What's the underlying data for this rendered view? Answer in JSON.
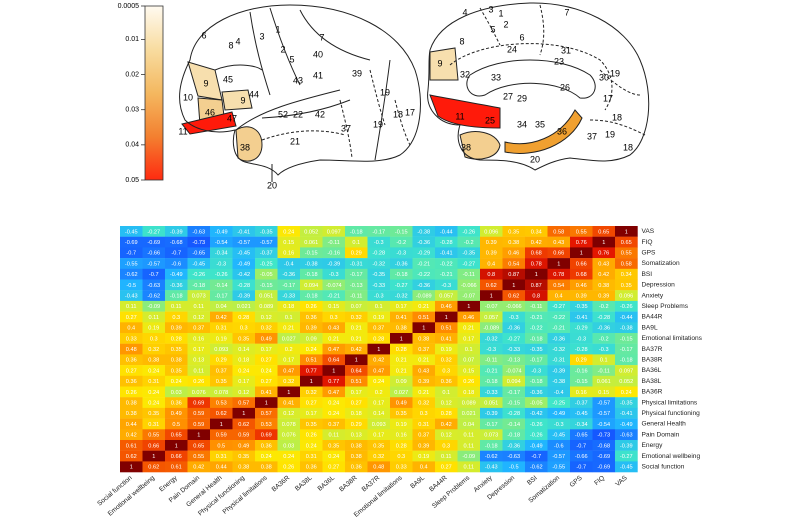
{
  "brain_maps": {
    "lateral_labels": [
      "4",
      "6",
      "3",
      "1",
      "2",
      "5",
      "7",
      "8",
      "9",
      "9",
      "10",
      "46",
      "45",
      "44",
      "43",
      "41",
      "40",
      "39",
      "19",
      "18",
      "17",
      "11",
      "47",
      "52",
      "22",
      "42",
      "21",
      "37",
      "19",
      "38",
      "20"
    ],
    "medial_labels": [
      "4",
      "3",
      "1",
      "2",
      "5",
      "6",
      "8",
      "24",
      "31",
      "7",
      "32",
      "23",
      "33",
      "9",
      "30",
      "19",
      "27",
      "29",
      "26",
      "17",
      "18",
      "11",
      "25",
      "34",
      "35",
      "36",
      "37",
      "19",
      "18",
      "38",
      "20"
    ]
  },
  "colorbar": {
    "lim": [
      0.0005,
      0.05
    ],
    "ticks": [
      0.0005,
      0.01,
      0.02,
      0.03,
      0.04,
      0.05
    ],
    "colors": [
      "#fffaf0",
      "#f8dca0",
      "#f4b860",
      "#f38030",
      "#ff2a10"
    ]
  },
  "chart_data": {
    "type": "heatmap",
    "rows": [
      "VAS",
      "FIQ",
      "GPS",
      "Somatization",
      "BSI",
      "Depression",
      "Anxiety",
      "Sleep Problems",
      "BA44R",
      "BA9L",
      "Emotional limitations",
      "BA37R",
      "BA38R",
      "BA36L",
      "BA38L",
      "BA36R",
      "Physical limitations",
      "Physical functioning",
      "General Health",
      "Pain Domain",
      "Energy",
      "Emotional wellbeing",
      "Social function"
    ],
    "columns": [
      "Social function",
      "Emotional wellbeing",
      "Energy",
      "Pain Domain",
      "General Health",
      "Physical functioning",
      "Physical limitations",
      "BA36R",
      "BA38L",
      "BA36L",
      "BA38R",
      "BA37R",
      "Emotional limitations",
      "BA9L",
      "BA44R",
      "Sleep Problems",
      "Anxiety",
      "Depression",
      "BSI",
      "Somatization",
      "GPS",
      "FIQ",
      "VAS"
    ],
    "clim": [
      -1,
      1
    ],
    "colormap": [
      "#0a1ea0",
      "#1450ff",
      "#20b4ff",
      "#40e6c8",
      "#b4f050",
      "#ffe800",
      "#ff9000",
      "#e81800",
      "#800000"
    ],
    "values": [
      [
        -0.45,
        -0.27,
        -0.39,
        -0.63,
        -0.49,
        -0.41,
        -0.35,
        0.24,
        0.052,
        0.097,
        -0.18,
        -0.17,
        -0.15,
        -0.38,
        -0.44,
        -0.26,
        0.096,
        0.35,
        0.34,
        0.58,
        0.55,
        0.65,
        1
      ],
      [
        -0.69,
        -0.69,
        -0.68,
        -0.73,
        -0.54,
        -0.57,
        -0.57,
        0.15,
        0.061,
        -0.11,
        0.1,
        -0.3,
        -0.2,
        -0.36,
        -0.28,
        -0.2,
        0.39,
        0.38,
        0.42,
        0.43,
        0.76,
        1,
        0.65
      ],
      [
        -0.7,
        -0.66,
        -0.7,
        -0.65,
        -0.34,
        -0.45,
        -0.37,
        0.16,
        -0.15,
        -0.16,
        0.29,
        -0.28,
        -0.3,
        -0.29,
        -0.41,
        -0.35,
        0.39,
        0.46,
        0.68,
        0.66,
        1,
        0.76,
        0.55
      ],
      [
        -0.55,
        -0.57,
        -0.6,
        -0.45,
        -0.3,
        -0.49,
        -0.25,
        -0.4,
        -0.38,
        -0.39,
        -0.31,
        -0.32,
        -0.36,
        -0.21,
        -0.22,
        -0.27,
        0.4,
        0.54,
        0.78,
        1,
        0.66,
        0.43,
        0.58
      ],
      [
        -0.62,
        -0.7,
        -0.49,
        -0.26,
        -0.26,
        -0.42,
        -0.05,
        -0.36,
        -0.18,
        -0.3,
        -0.17,
        -0.35,
        -0.18,
        -0.22,
        -0.21,
        -0.11,
        0.8,
        0.87,
        1,
        0.78,
        0.68,
        0.42,
        0.34
      ],
      [
        -0.5,
        -0.63,
        -0.36,
        -0.18,
        -0.14,
        -0.28,
        -0.15,
        -0.17,
        0.094,
        -0.074,
        -0.13,
        -0.33,
        -0.27,
        -0.36,
        -0.3,
        -0.066,
        0.62,
        1,
        0.87,
        0.54,
        0.46,
        0.38,
        0.35
      ],
      [
        -0.43,
        -0.62,
        -0.18,
        0.073,
        -0.17,
        -0.39,
        0.051,
        -0.33,
        -0.18,
        -0.21,
        -0.11,
        -0.3,
        -0.32,
        -0.089,
        0.057,
        -0.07,
        1,
        0.62,
        0.8,
        0.4,
        0.39,
        0.39,
        0.096
      ],
      [
        0.11,
        -0.09,
        0.11,
        0.11,
        0.04,
        0.021,
        0.089,
        0.18,
        0.26,
        0.15,
        0.07,
        0.1,
        0.17,
        0.21,
        0.46,
        1,
        -0.07,
        -0.066,
        -0.11,
        -0.27,
        -0.35,
        -0.2,
        -0.26
      ],
      [
        0.27,
        0.11,
        0.3,
        0.12,
        0.42,
        0.28,
        0.12,
        0.1,
        0.36,
        0.3,
        0.32,
        0.19,
        0.41,
        0.51,
        1,
        0.46,
        0.057,
        -0.3,
        -0.21,
        -0.22,
        -0.41,
        -0.28,
        -0.44
      ],
      [
        0.4,
        0.19,
        0.39,
        0.37,
        0.31,
        0.3,
        0.32,
        0.21,
        0.39,
        0.43,
        0.21,
        0.37,
        0.38,
        1,
        0.51,
        0.21,
        -0.089,
        -0.36,
        -0.22,
        -0.21,
        -0.29,
        -0.36,
        -0.38
      ],
      [
        0.33,
        0.3,
        0.28,
        0.16,
        0.19,
        0.35,
        0.49,
        0.027,
        0.09,
        0.21,
        0.21,
        0.28,
        1,
        0.38,
        0.41,
        0.17,
        -0.32,
        -0.27,
        -0.18,
        -0.36,
        -0.3,
        -0.2,
        -0.15
      ],
      [
        0.48,
        0.32,
        0.35,
        0.17,
        0.093,
        0.14,
        0.17,
        0.2,
        0.24,
        0.47,
        0.42,
        1,
        0.28,
        0.37,
        0.19,
        0.1,
        -0.3,
        -0.33,
        -0.35,
        -0.32,
        -0.28,
        -0.3,
        -0.17
      ],
      [
        0.36,
        0.38,
        0.38,
        0.13,
        0.29,
        0.18,
        0.27,
        0.17,
        0.51,
        0.64,
        1,
        0.42,
        0.21,
        0.21,
        0.32,
        0.07,
        -0.11,
        -0.13,
        -0.17,
        -0.31,
        0.29,
        0.1,
        -0.18
      ],
      [
        0.27,
        0.24,
        0.35,
        0.11,
        0.37,
        0.24,
        0.24,
        0.47,
        0.77,
        1,
        0.64,
        0.47,
        0.21,
        0.43,
        0.3,
        0.15,
        -0.21,
        -0.074,
        -0.3,
        -0.39,
        -0.16,
        -0.11,
        0.097
      ],
      [
        0.36,
        0.31,
        0.24,
        0.26,
        0.35,
        0.17,
        0.27,
        0.32,
        1,
        0.77,
        0.51,
        0.24,
        0.09,
        0.39,
        0.36,
        0.26,
        -0.18,
        0.094,
        -0.18,
        -0.38,
        -0.15,
        0.061,
        0.052
      ],
      [
        0.26,
        0.24,
        0.03,
        0.076,
        0.078,
        0.12,
        0.41,
        1,
        0.32,
        0.47,
        0.17,
        0.2,
        0.027,
        0.21,
        0.1,
        0.18,
        -0.33,
        -0.17,
        -0.36,
        -0.4,
        0.16,
        0.15,
        0.24
      ],
      [
        0.38,
        0.24,
        0.36,
        0.69,
        0.53,
        0.57,
        1,
        0.41,
        0.27,
        0.24,
        0.27,
        0.17,
        0.49,
        0.32,
        0.12,
        0.089,
        0.051,
        -0.15,
        -0.05,
        -0.25,
        -0.37,
        -0.57,
        -0.35
      ],
      [
        0.38,
        0.35,
        0.49,
        0.59,
        0.62,
        1,
        0.57,
        0.12,
        0.17,
        0.24,
        0.18,
        0.14,
        0.35,
        0.3,
        0.28,
        0.021,
        -0.39,
        -0.28,
        -0.42,
        -0.49,
        -0.45,
        -0.57,
        -0.41
      ],
      [
        0.44,
        0.31,
        0.5,
        0.59,
        1,
        0.62,
        0.53,
        0.078,
        0.35,
        0.37,
        0.29,
        0.093,
        0.19,
        0.31,
        0.42,
        0.04,
        -0.17,
        -0.14,
        -0.26,
        -0.3,
        -0.34,
        -0.54,
        -0.49
      ],
      [
        0.42,
        0.55,
        0.65,
        1,
        0.59,
        0.59,
        0.69,
        0.076,
        0.26,
        0.11,
        0.13,
        0.17,
        0.16,
        0.37,
        0.12,
        0.11,
        0.073,
        -0.18,
        -0.26,
        -0.45,
        -0.65,
        -0.73,
        -0.63
      ],
      [
        0.61,
        0.66,
        1,
        0.65,
        0.5,
        0.49,
        0.36,
        0.03,
        0.24,
        0.35,
        0.38,
        0.35,
        0.28,
        0.39,
        0.3,
        0.11,
        -0.18,
        -0.36,
        -0.49,
        -0.6,
        -0.7,
        -0.68,
        -0.39
      ],
      [
        0.62,
        1,
        0.66,
        0.55,
        0.31,
        0.35,
        0.24,
        0.24,
        0.31,
        0.24,
        0.38,
        0.32,
        0.3,
        0.19,
        0.11,
        -0.09,
        -0.62,
        -0.63,
        -0.7,
        -0.57,
        -0.66,
        -0.69,
        -0.27
      ],
      [
        1,
        0.62,
        0.61,
        0.42,
        0.44,
        0.38,
        0.38,
        0.26,
        0.36,
        0.27,
        0.36,
        0.48,
        0.33,
        0.4,
        0.27,
        0.11,
        -0.43,
        -0.5,
        -0.62,
        -0.55,
        -0.7,
        -0.69,
        -0.45
      ]
    ]
  }
}
